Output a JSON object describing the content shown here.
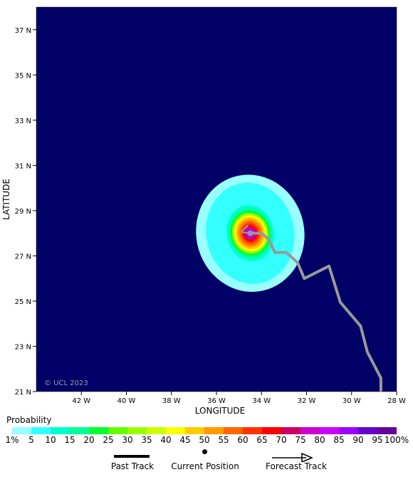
{
  "map": {
    "xlabel": "LONGITUDE",
    "ylabel": "LATITUDE",
    "lon_range": [
      -44.0,
      -28.0
    ],
    "lat_range": [
      21.0,
      38.0
    ],
    "x_ticks": [
      {
        "lon": -42,
        "label": "42 W"
      },
      {
        "lon": -40,
        "label": "40 W"
      },
      {
        "lon": -38,
        "label": "38 W"
      },
      {
        "lon": -36,
        "label": "36 W"
      },
      {
        "lon": -34,
        "label": "34 W"
      },
      {
        "lon": -32,
        "label": "32 W"
      },
      {
        "lon": -30,
        "label": "30 W"
      },
      {
        "lon": -28,
        "label": "28 W"
      }
    ],
    "y_ticks": [
      {
        "lat": 37,
        "label": "37 N"
      },
      {
        "lat": 35,
        "label": "35 N"
      },
      {
        "lat": 33,
        "label": "33 N"
      },
      {
        "lat": 31,
        "label": "31 N"
      },
      {
        "lat": 29,
        "label": "29 N"
      },
      {
        "lat": 27,
        "label": "27 N"
      },
      {
        "lat": 25,
        "label": "25 N"
      },
      {
        "lat": 23,
        "label": "23 N"
      },
      {
        "lat": 21,
        "label": "21 N"
      }
    ],
    "background_color": "#000066",
    "copyright": "© UCL 2023"
  },
  "probability_field": {
    "center": {
      "lon": -34.5,
      "lat": 28.0
    },
    "contours": [
      {
        "min_prob": 1,
        "half_width_deg": 2.4,
        "half_height_deg": 2.6,
        "color": "#99ffff"
      },
      {
        "min_prob": 5,
        "half_width_deg": 1.95,
        "half_height_deg": 2.25,
        "color": "#33ffff"
      },
      {
        "min_prob": 10,
        "half_width_deg": 1.05,
        "half_height_deg": 1.25,
        "color": "#00ffcc"
      },
      {
        "min_prob": 15,
        "half_width_deg": 0.95,
        "half_height_deg": 1.1,
        "color": "#00ff99"
      },
      {
        "min_prob": 20,
        "half_width_deg": 0.88,
        "half_height_deg": 1.0,
        "color": "#00ff33"
      },
      {
        "min_prob": 30,
        "half_width_deg": 0.8,
        "half_height_deg": 0.9,
        "color": "#99ff00"
      },
      {
        "min_prob": 40,
        "half_width_deg": 0.72,
        "half_height_deg": 0.8,
        "color": "#ffff00"
      },
      {
        "min_prob": 45,
        "half_width_deg": 0.64,
        "half_height_deg": 0.72,
        "color": "#ffcc00"
      },
      {
        "min_prob": 50,
        "half_width_deg": 0.56,
        "half_height_deg": 0.63,
        "color": "#ff9900"
      },
      {
        "min_prob": 55,
        "half_width_deg": 0.48,
        "half_height_deg": 0.54,
        "color": "#ff6600"
      },
      {
        "min_prob": 60,
        "half_width_deg": 0.4,
        "half_height_deg": 0.45,
        "color": "#ff3300"
      },
      {
        "min_prob": 65,
        "half_width_deg": 0.33,
        "half_height_deg": 0.37,
        "color": "#ff0000"
      },
      {
        "min_prob": 70,
        "half_width_deg": 0.27,
        "half_height_deg": 0.3,
        "color": "#cc0066"
      },
      {
        "min_prob": 75,
        "half_width_deg": 0.21,
        "half_height_deg": 0.24,
        "color": "#cc00cc"
      },
      {
        "min_prob": 85,
        "half_width_deg": 0.15,
        "half_height_deg": 0.17,
        "color": "#9900ff"
      },
      {
        "min_prob": 95,
        "half_width_deg": 0.09,
        "half_height_deg": 0.1,
        "color": "#660099"
      }
    ]
  },
  "past_track": [
    {
      "lon": -34.6,
      "lat": 28.35
    },
    {
      "lon": -34.9,
      "lat": 28.05
    },
    {
      "lon": -34.5,
      "lat": 28.0
    }
  ],
  "current_position": {
    "lon": -34.5,
    "lat": 28.0
  },
  "forecast_track": [
    {
      "lon": -34.5,
      "lat": 28.0
    },
    {
      "lon": -34.0,
      "lat": 28.0
    },
    {
      "lon": -33.7,
      "lat": 27.75
    },
    {
      "lon": -33.4,
      "lat": 27.15
    },
    {
      "lon": -32.9,
      "lat": 27.15
    },
    {
      "lon": -32.4,
      "lat": 26.7
    },
    {
      "lon": -32.1,
      "lat": 26.0
    },
    {
      "lon": -31.0,
      "lat": 26.55
    },
    {
      "lon": -30.5,
      "lat": 24.95
    },
    {
      "lon": -29.6,
      "lat": 23.9
    },
    {
      "lon": -29.3,
      "lat": 22.75
    },
    {
      "lon": -28.7,
      "lat": 21.6
    },
    {
      "lon": -28.7,
      "lat": 21.0
    }
  ],
  "track_color": "#999999",
  "legend": {
    "title": "Probability",
    "colors": [
      "#99ffff",
      "#33ffff",
      "#00ffcc",
      "#00ff99",
      "#00ff33",
      "#66ff00",
      "#99ff00",
      "#ccff00",
      "#ffff00",
      "#ffcc00",
      "#ff9900",
      "#ff6600",
      "#ff3300",
      "#ff0000",
      "#cc0066",
      "#cc00cc",
      "#cc00ff",
      "#9900ff",
      "#6600cc",
      "#660099"
    ],
    "labels": [
      "1%",
      "5",
      "10",
      "15",
      "20",
      "25",
      "30",
      "35",
      "40",
      "45",
      "50",
      "55",
      "60",
      "65",
      "70",
      "75",
      "80",
      "85",
      "90",
      "95",
      "100%"
    ]
  },
  "key": {
    "past_track_label": "Past Track",
    "current_position_label": "Current Position",
    "forecast_track_label": "Forecast Track"
  }
}
